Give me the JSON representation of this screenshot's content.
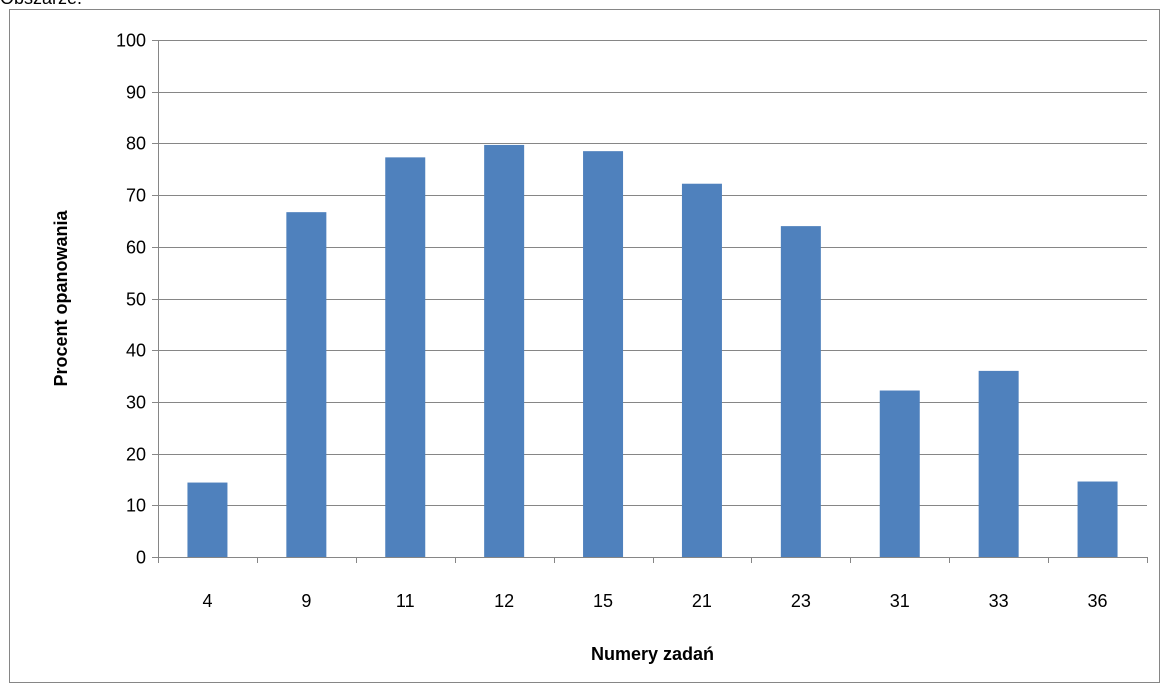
{
  "top_text": "Obszarze.",
  "chart_data": {
    "type": "bar",
    "categories": [
      "4",
      "9",
      "11",
      "12",
      "15",
      "21",
      "23",
      "31",
      "33",
      "36"
    ],
    "values": [
      14.4,
      66.7,
      77.3,
      79.7,
      78.5,
      72.2,
      64.0,
      32.2,
      36.0,
      14.6
    ],
    "title": "",
    "xlabel": "Numery zadań",
    "ylabel": "Procent opanowania",
    "ylim": [
      0,
      100
    ],
    "yticks": [
      "0",
      "10",
      "20",
      "30",
      "40",
      "50",
      "60",
      "70",
      "80",
      "90",
      "100"
    ],
    "grid": true,
    "legend": "none",
    "bar_color": "#4F81BD",
    "grid_color": "#868686"
  }
}
